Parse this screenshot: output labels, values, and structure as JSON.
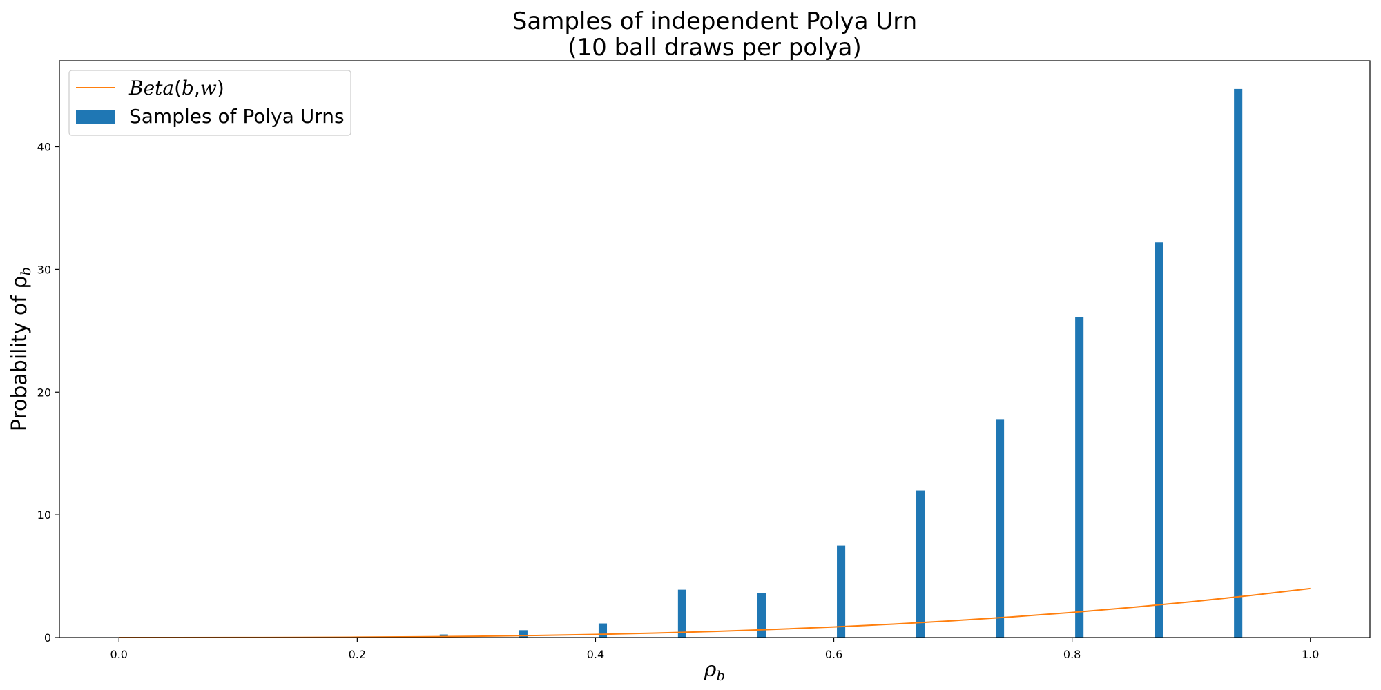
{
  "chart_data": {
    "type": "bar",
    "title": "Samples of independent Polya Urn",
    "subtitle": "(10 ball draws per polya)",
    "xlabel": "ρ",
    "xlabel_sub": "b",
    "ylabel": "Probability of ρ",
    "ylabel_sub": "b",
    "xlim": [
      -0.05,
      1.05
    ],
    "ylim": [
      0,
      47
    ],
    "x_ticks": [
      0.0,
      0.2,
      0.4,
      0.6,
      0.8,
      1.0
    ],
    "x_tick_labels": [
      "0.0",
      "0.2",
      "0.4",
      "0.6",
      "0.8",
      "1.0"
    ],
    "y_ticks": [
      0,
      10,
      20,
      30,
      40
    ],
    "y_tick_labels": [
      "0",
      "10",
      "20",
      "30",
      "40"
    ],
    "grid": false,
    "legend_position": "top-left",
    "colors": {
      "bars": "#1f77b4",
      "line": "#ff7f0e"
    },
    "series": [
      {
        "name": "Samples of Polya Urns",
        "type": "bar",
        "bar_width": 0.007,
        "x": [
          0.2727,
          0.3394,
          0.4061,
          0.4727,
          0.5394,
          0.6061,
          0.6727,
          0.7394,
          0.8061,
          0.8727,
          0.9394
        ],
        "values": [
          0.25,
          0.6,
          1.15,
          3.9,
          3.6,
          7.5,
          12.0,
          17.8,
          26.1,
          32.2,
          44.7
        ]
      },
      {
        "name": "Beta(b,w)",
        "name_parts": [
          "Beta",
          "(",
          "b",
          ",",
          "w",
          ")"
        ],
        "type": "line",
        "x": [
          0.0,
          0.05,
          0.1,
          0.15,
          0.2,
          0.25,
          0.3,
          0.35,
          0.4,
          0.45,
          0.5,
          0.55,
          0.6,
          0.65,
          0.7,
          0.75,
          0.8,
          0.85,
          0.9,
          0.95,
          1.0
        ],
        "values": [
          0.0,
          0.0005,
          0.004,
          0.0135,
          0.032,
          0.0625,
          0.108,
          0.1715,
          0.256,
          0.3645,
          0.5,
          0.6655,
          0.864,
          1.0985,
          1.372,
          1.6875,
          2.048,
          2.4565,
          2.916,
          3.4295,
          4.0
        ]
      }
    ]
  }
}
